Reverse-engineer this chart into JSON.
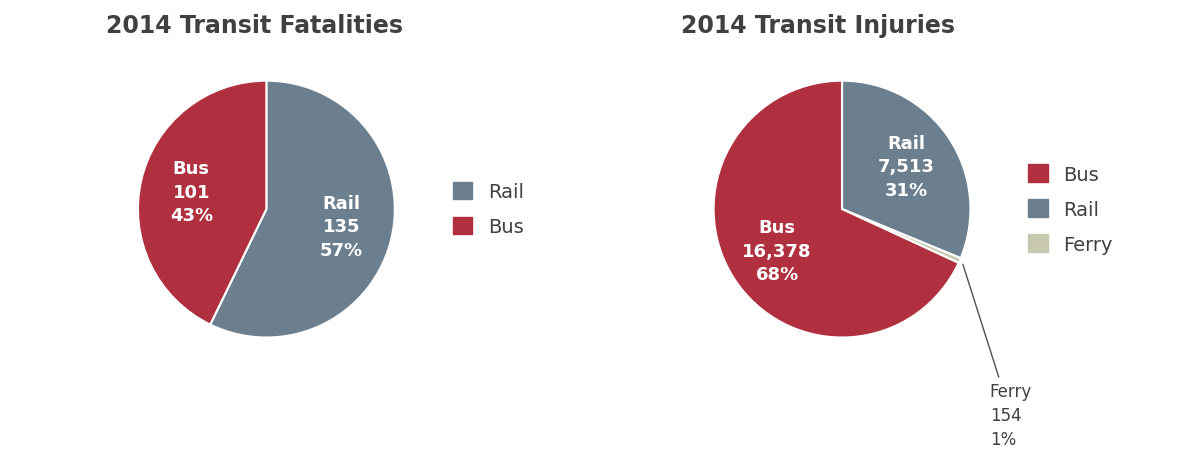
{
  "fatalities": {
    "title": "2014 Transit Fatalities",
    "labels": [
      "Rail",
      "Bus"
    ],
    "values": [
      135,
      101
    ],
    "colors": [
      "#6b7f8e",
      "#b03040"
    ],
    "legend_labels": [
      "Rail",
      "Bus"
    ],
    "startangle": 90,
    "counterclock": false,
    "label_texts": [
      "Rail\n135\n57%",
      "Bus\n101\n43%"
    ]
  },
  "injuries": {
    "title": "2014 Transit Injuries",
    "labels": [
      "Rail",
      "Ferry",
      "Bus"
    ],
    "values": [
      7513,
      154,
      16378
    ],
    "colors": [
      "#6b7f8e",
      "#c8c8b0",
      "#b03040"
    ],
    "legend_labels": [
      "Bus",
      "Rail",
      "Ferry"
    ],
    "legend_colors": [
      "#b03040",
      "#6b7f8e",
      "#c8c8b0"
    ],
    "startangle": 90,
    "counterclock": false,
    "label_texts": [
      "Rail\n7,513\n31%",
      "Ferry\n154\n1%",
      "Bus\n16,378\n68%"
    ]
  },
  "title_fontsize": 17,
  "label_fontsize": 13,
  "legend_fontsize": 14,
  "background_color": "#ffffff",
  "title_color": "#404040",
  "label_color_white": "#ffffff",
  "label_color_dark": "#404040"
}
